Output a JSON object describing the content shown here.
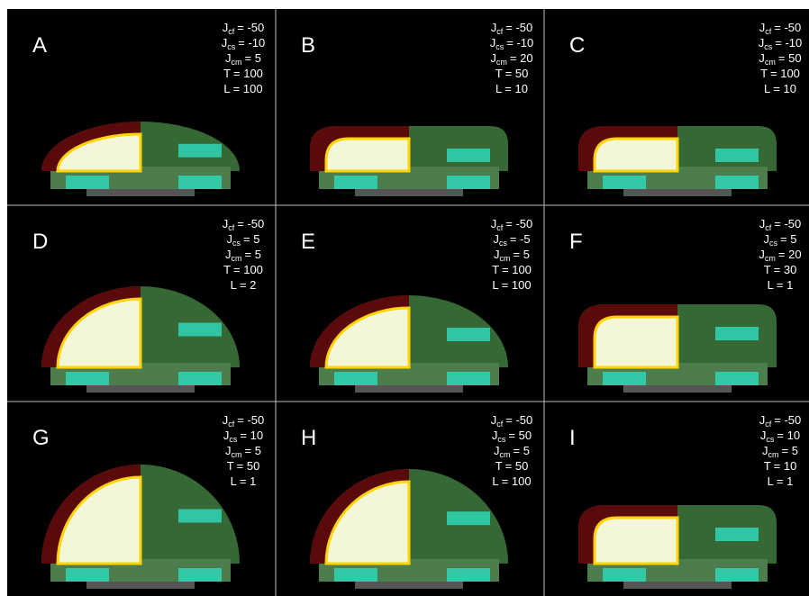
{
  "panels": [
    {
      "label": "A",
      "params": [
        {
          "label": "J",
          "sub": "cf",
          "value": "= -50"
        },
        {
          "label": "J",
          "sub": "cs",
          "value": "= -10"
        },
        {
          "label": "J",
          "sub": "cm",
          "value": "= 5"
        },
        {
          "label": "T",
          "value": "= 100"
        },
        {
          "label": "L",
          "value": "= 100"
        }
      ]
    },
    {
      "label": "B",
      "params": [
        {
          "label": "J",
          "sub": "cf",
          "value": "= -50"
        },
        {
          "label": "J",
          "sub": "cs",
          "value": "= -10"
        },
        {
          "label": "J",
          "sub": "cm",
          "value": "= 20"
        },
        {
          "label": "T",
          "value": "= 50"
        },
        {
          "label": "L",
          "value": "= 10"
        }
      ]
    },
    {
      "label": "C",
      "params": [
        {
          "label": "J",
          "sub": "cf",
          "value": "= -50"
        },
        {
          "label": "J",
          "sub": "cs",
          "value": "= -10"
        },
        {
          "label": "J",
          "sub": "cm",
          "value": "= 50"
        },
        {
          "label": "T",
          "value": "= 100"
        },
        {
          "label": "L",
          "value": "= 10"
        }
      ]
    },
    {
      "label": "D",
      "params": [
        {
          "label": "J",
          "sub": "cf",
          "value": "= -50"
        },
        {
          "label": "J",
          "sub": "cs",
          "value": "= 5"
        },
        {
          "label": "J",
          "sub": "cm",
          "value": "= 5"
        },
        {
          "label": "T",
          "value": "= 100"
        },
        {
          "label": "L",
          "value": "= 2"
        }
      ]
    },
    {
      "label": "E",
      "params": [
        {
          "label": "J",
          "sub": "cf",
          "value": "= -50"
        },
        {
          "label": "J",
          "sub": "cs",
          "value": "= -5"
        },
        {
          "label": "J",
          "sub": "cm",
          "value": "= 5"
        },
        {
          "label": "T",
          "value": "= 100"
        },
        {
          "label": "L",
          "value": "= 100"
        }
      ]
    },
    {
      "label": "F",
      "params": [
        {
          "label": "J",
          "sub": "cf",
          "value": "= -50"
        },
        {
          "label": "J",
          "sub": "cs",
          "value": "= 5"
        },
        {
          "label": "J",
          "sub": "cm",
          "value": "= 20"
        },
        {
          "label": "T",
          "value": "= 30"
        },
        {
          "label": "L",
          "value": "= 1"
        }
      ]
    },
    {
      "label": "G",
      "params": [
        {
          "label": "J",
          "sub": "cf",
          "value": "= -50"
        },
        {
          "label": "J",
          "sub": "cs",
          "value": "= 10"
        },
        {
          "label": "J",
          "sub": "cm",
          "value": "= 5"
        },
        {
          "label": "T",
          "value": "= 50"
        },
        {
          "label": "L",
          "value": "= 1"
        }
      ]
    },
    {
      "label": "H",
      "params": [
        {
          "label": "J",
          "sub": "cf",
          "value": "= -50"
        },
        {
          "label": "J",
          "sub": "cs",
          "value": "= 50"
        },
        {
          "label": "J",
          "sub": "cm",
          "value": "= 5"
        },
        {
          "label": "T",
          "value": "= 50"
        },
        {
          "label": "L",
          "value": "= 100"
        }
      ]
    },
    {
      "label": "I",
      "params": [
        {
          "label": "J",
          "sub": "cf",
          "value": "= -50"
        },
        {
          "label": "J",
          "sub": "cs",
          "value": "= 10"
        },
        {
          "label": "J",
          "sub": "cm",
          "value": "= 5"
        },
        {
          "label": "T",
          "value": "= 10"
        },
        {
          "label": "L",
          "value": "= 1"
        }
      ]
    }
  ]
}
